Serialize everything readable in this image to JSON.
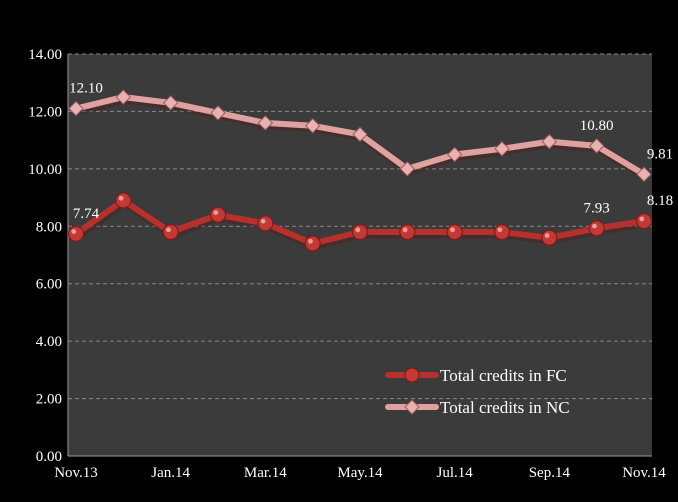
{
  "chart_data": {
    "type": "line",
    "title": "",
    "xlabel": "",
    "ylabel": "",
    "categories": [
      "Nov.13",
      "Dec.13",
      "Jan.14",
      "Feb.14",
      "Mar.14",
      "Apr.14",
      "May.14",
      "Jun.14",
      "Jul.14",
      "Aug.14",
      "Sep.14",
      "Oct.14",
      "Nov.14"
    ],
    "x_tick_labels": [
      "Nov.13",
      "Jan.14",
      "Mar.14",
      "May.14",
      "Jul.14",
      "Sep.14",
      "Nov.14"
    ],
    "y_tick_labels": [
      "0.00",
      "2.00",
      "4.00",
      "6.00",
      "8.00",
      "10.00",
      "12.00",
      "14.00"
    ],
    "ylim": [
      0,
      14
    ],
    "grid": true,
    "legend_position": "bottom-right",
    "series": [
      {
        "name": "Total credits in FC",
        "color": "#b8302c",
        "marker": "circle",
        "values": [
          7.74,
          8.9,
          7.8,
          8.4,
          8.1,
          7.4,
          7.8,
          7.8,
          7.8,
          7.8,
          7.6,
          7.93,
          8.18
        ],
        "data_labels": {
          "0": "7.74",
          "11": "7.93",
          "12": "8.18"
        }
      },
      {
        "name": "Total credits in NC",
        "color": "#e0a1a1",
        "marker": "diamond",
        "values": [
          12.1,
          12.5,
          12.3,
          11.95,
          11.6,
          11.5,
          11.2,
          10.0,
          10.5,
          10.7,
          10.95,
          10.8,
          9.81
        ],
        "data_labels": {
          "0": "12.10",
          "11": "10.80",
          "12": "9.81"
        }
      }
    ]
  }
}
